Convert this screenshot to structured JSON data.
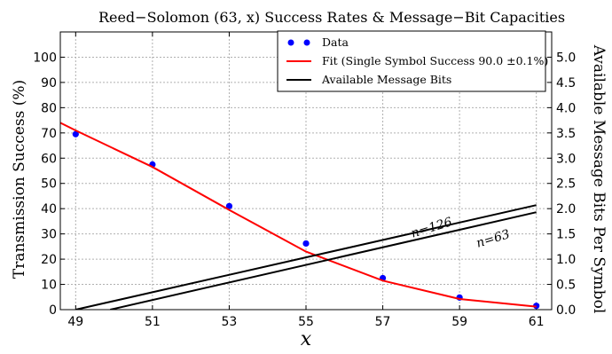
{
  "chart_data": {
    "type": "scatter",
    "title": "Reed−Solomon (63, x) Success Rates & Message−Bit Capacities",
    "xlabel": "x",
    "ylabel_left": "Transmission Success (%)",
    "ylabel_right": "Available Message Bits Per Symbol",
    "xlim": [
      48.6,
      61.4
    ],
    "ylim_left": [
      0,
      110
    ],
    "ylim_right": [
      0,
      5.5
    ],
    "x_ticks": [
      49,
      51,
      53,
      55,
      57,
      59,
      61
    ],
    "y_ticks_left": [
      0,
      10,
      20,
      30,
      40,
      50,
      60,
      70,
      80,
      90,
      100
    ],
    "y_ticks_right": [
      "0.0",
      "0.5",
      "1.0",
      "1.5",
      "2.0",
      "2.5",
      "3.0",
      "3.5",
      "4.0",
      "4.5",
      "5.0"
    ],
    "grid": true,
    "legend_position": "top-right",
    "legend": [
      {
        "label": "Data",
        "color": "#0000ff",
        "style": "dots"
      },
      {
        "label": "Fit (Single Symbol Success 90.0 ±0.1%)",
        "color": "#ff0000",
        "style": "line"
      },
      {
        "label": "Available Message Bits",
        "color": "#000000",
        "style": "line"
      }
    ],
    "series": [
      {
        "name": "Data",
        "axis": "left",
        "color": "#0000ff",
        "x": [
          49,
          51,
          53,
          55,
          57,
          59,
          61
        ],
        "y": [
          69.5,
          57.5,
          41,
          26.2,
          12.5,
          4.8,
          1.5
        ]
      },
      {
        "name": "Fit (Single Symbol Success 90.0 ±0.1%)",
        "axis": "left",
        "color": "#ff0000",
        "x": [
          48.6,
          49,
          51,
          53,
          55,
          57,
          59,
          61
        ],
        "y": [
          74,
          71,
          56.5,
          39.5,
          23,
          11.5,
          4.2,
          1.2
        ]
      },
      {
        "name": "n=126",
        "axis": "right",
        "color": "#000000",
        "x": [
          49,
          61
        ],
        "y": [
          0.0,
          2.07
        ]
      },
      {
        "name": "n=63",
        "axis": "right",
        "color": "#000000",
        "x": [
          49.9,
          61
        ],
        "y": [
          0.0,
          1.93
        ]
      }
    ],
    "annotations": [
      {
        "text": "n=126",
        "x": 58.3,
        "y": 1.55,
        "axis": "right",
        "rotate": -17
      },
      {
        "text": "n=63",
        "x": 59.9,
        "y": 1.33,
        "axis": "right",
        "rotate": -17
      }
    ]
  }
}
